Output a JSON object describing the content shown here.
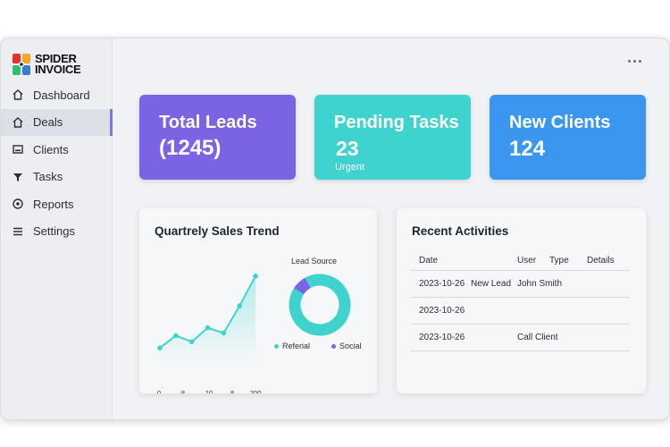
{
  "brand": {
    "line1": "SPIDER",
    "line2": "INVOICE",
    "colors": [
      "#e3342f",
      "#f6a623",
      "#2fbf71",
      "#3a7bd5"
    ]
  },
  "sidebar": {
    "items": [
      {
        "label": "Dashboard",
        "icon": "home-icon"
      },
      {
        "label": "Deals",
        "icon": "home-icon",
        "active": true
      },
      {
        "label": "Clients",
        "icon": "card-icon"
      },
      {
        "label": "Tasks",
        "icon": "funnel-icon"
      },
      {
        "label": "Reports",
        "icon": "target-icon"
      },
      {
        "label": "Settings",
        "icon": "menu-icon"
      }
    ]
  },
  "header": {
    "more_icon": "more-dots-icon"
  },
  "stats": {
    "leads": {
      "title": "Total Leads",
      "value": "(1245)",
      "color": "#7b64e3"
    },
    "tasks": {
      "title": "Pending Tasks",
      "value": "23",
      "sub": "Urgent",
      "color": "#3ed3cf"
    },
    "clients": {
      "title": "New Clients",
      "value": "124",
      "color": "#3a96ef"
    }
  },
  "sales_panel": {
    "title": "Quartrely Sales Trend",
    "donut_title": "Lead Source"
  },
  "chart_data": [
    {
      "type": "line",
      "title": "Quartrely Sales Trend",
      "x_ticks": [
        "0",
        "8",
        "10",
        "8",
        "200"
      ],
      "values": [
        10,
        24,
        17,
        33,
        27,
        58,
        92
      ],
      "ylim": [
        0,
        100
      ],
      "color": "#3ed3cf",
      "fill": true,
      "grid": false
    },
    {
      "type": "pie",
      "title": "Lead Source",
      "donut": true,
      "slices": [
        {
          "label": "Referial",
          "value": 92,
          "color": "#3ed3cf"
        },
        {
          "label": "Social",
          "value": 8,
          "color": "#7b64e3"
        }
      ],
      "legend": "bottom"
    }
  ],
  "activity": {
    "title": "Recent Activities",
    "headers": {
      "date": "Date",
      "user": "User",
      "type": "Type",
      "details": "Details"
    },
    "rows": [
      {
        "date": "2023-10-26",
        "type": "New Lead",
        "user": "John Smith"
      },
      {
        "date": "2023-10-26",
        "type": "",
        "user": ""
      },
      {
        "date": "2023-10-26",
        "type": "",
        "user": "Call Client"
      }
    ]
  }
}
